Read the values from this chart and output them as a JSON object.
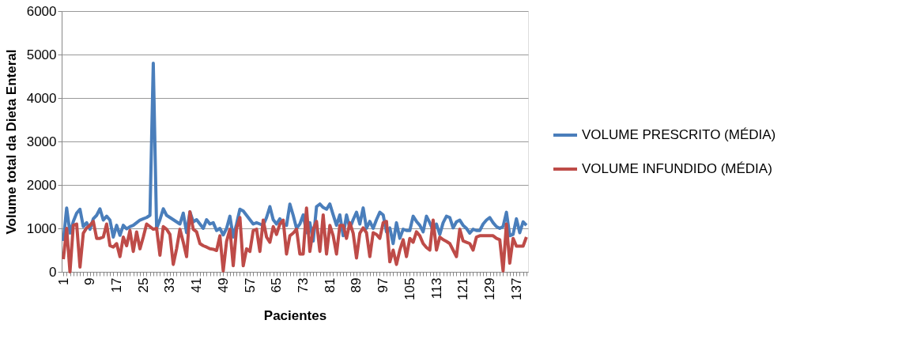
{
  "chart_data": {
    "type": "line",
    "xlabel": "Pacientes",
    "ylabel": "Volume total  da Dieta Enteral",
    "categories": [
      "1",
      null,
      null,
      null,
      null,
      null,
      null,
      null,
      "9",
      null,
      null,
      null,
      null,
      null,
      null,
      null,
      "17",
      null,
      null,
      null,
      null,
      null,
      null,
      null,
      "25",
      null,
      null,
      null,
      null,
      null,
      null,
      null,
      "33",
      null,
      null,
      null,
      null,
      null,
      null,
      null,
      "41",
      null,
      null,
      null,
      null,
      null,
      null,
      null,
      "49",
      null,
      null,
      null,
      null,
      null,
      null,
      null,
      "57",
      null,
      null,
      null,
      null,
      null,
      null,
      null,
      "65",
      null,
      null,
      null,
      null,
      null,
      null,
      null,
      "73",
      null,
      null,
      null,
      null,
      null,
      null,
      null,
      "81",
      null,
      null,
      null,
      null,
      null,
      null,
      null,
      "89",
      null,
      null,
      null,
      null,
      null,
      null,
      null,
      "97",
      null,
      null,
      null,
      null,
      null,
      null,
      null,
      "105",
      null,
      null,
      null,
      null,
      null,
      null,
      null,
      "113",
      null,
      null,
      null,
      null,
      null,
      null,
      null,
      "121",
      null,
      null,
      null,
      null,
      null,
      null,
      null,
      "129",
      null,
      null,
      null,
      null,
      null,
      null,
      null,
      "137",
      null,
      null,
      null
    ],
    "series": [
      {
        "name": "VOLUME PRESCRITO (MÉDIA)",
        "color": "#4a7ebb",
        "values": [
          710,
          1470,
          890,
          1160,
          1350,
          1440,
          1040,
          1130,
          980,
          1220,
          1300,
          1450,
          1190,
          1280,
          1190,
          800,
          1070,
          840,
          1070,
          990,
          1040,
          1070,
          1130,
          1190,
          1220,
          1250,
          1300,
          4800,
          1000,
          1200,
          1450,
          1300,
          1250,
          1200,
          1150,
          1100,
          1350,
          900,
          1380,
          1150,
          1200,
          1100,
          1000,
          1200,
          1100,
          1130,
          950,
          1000,
          850,
          1000,
          1280,
          800,
          1100,
          1440,
          1400,
          1300,
          1200,
          1100,
          1130,
          1100,
          1070,
          1250,
          1500,
          1200,
          1100,
          1220,
          1100,
          1070,
          1560,
          1300,
          1000,
          1100,
          1310,
          900,
          1130,
          710,
          1500,
          1560,
          1480,
          1440,
          1560,
          1310,
          1070,
          1310,
          830,
          1310,
          1000,
          1200,
          1370,
          1100,
          1470,
          1000,
          1160,
          1000,
          1200,
          1370,
          1310,
          920,
          1010,
          650,
          1130,
          770,
          980,
          950,
          950,
          1280,
          1160,
          1070,
          920,
          1280,
          1130,
          950,
          1100,
          860,
          1130,
          1280,
          1250,
          1010,
          1150,
          1190,
          1070,
          1000,
          890,
          980,
          950,
          950,
          1100,
          1190,
          1250,
          1130,
          1040,
          1000,
          1040,
          1370,
          830,
          860,
          1220,
          900,
          1150,
          1070
        ]
      },
      {
        "name": "VOLUME INFUNDIDO (MÉDIA)",
        "color": "#be4b48",
        "values": [
          290,
          1000,
          0,
          1070,
          1100,
          110,
          890,
          1010,
          1070,
          1160,
          770,
          770,
          800,
          1100,
          600,
          570,
          650,
          350,
          800,
          600,
          950,
          470,
          920,
          530,
          800,
          1100,
          1040,
          980,
          1000,
          380,
          1040,
          980,
          860,
          170,
          530,
          980,
          680,
          350,
          1380,
          980,
          920,
          650,
          600,
          570,
          530,
          520,
          490,
          830,
          20,
          700,
          980,
          140,
          1000,
          1250,
          140,
          530,
          470,
          950,
          980,
          470,
          1190,
          800,
          680,
          1040,
          860,
          1100,
          1190,
          410,
          830,
          890,
          980,
          410,
          410,
          1470,
          470,
          980,
          1160,
          470,
          1310,
          410,
          1070,
          830,
          410,
          1070,
          1070,
          770,
          1130,
          890,
          320,
          890,
          1010,
          900,
          350,
          900,
          860,
          770,
          1130,
          1160,
          230,
          500,
          170,
          500,
          740,
          350,
          770,
          680,
          920,
          830,
          650,
          560,
          500,
          1190,
          500,
          800,
          740,
          700,
          650,
          500,
          350,
          980,
          710,
          680,
          650,
          500,
          800,
          830,
          830,
          830,
          830,
          830,
          770,
          740,
          20,
          1100,
          200,
          770,
          590,
          590,
          590,
          800
        ]
      }
    ],
    "ylim": [
      0,
      6000
    ],
    "yticks": [
      0,
      1000,
      2000,
      3000,
      4000,
      5000,
      6000
    ],
    "grid": "y",
    "legend": "right",
    "line_style": "solid",
    "marker": "none"
  }
}
